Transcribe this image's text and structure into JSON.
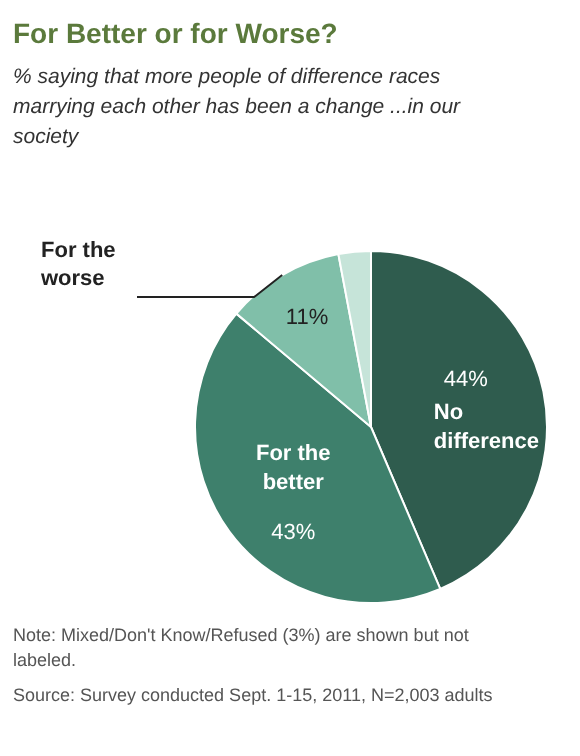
{
  "chart_data": {
    "type": "pie",
    "title": "For Better or for Worse?",
    "subtitle": "% saying that more people of difference races marrying each other has been a change ...in our society",
    "categories": [
      "No difference",
      "For the better",
      "For the worse",
      null
    ],
    "values": [
      44,
      43,
      11,
      3
    ],
    "colors": [
      "#2f5c4e",
      "#3e806c",
      "#80bfa9",
      "#c6e4d9"
    ],
    "value_labels": [
      "44%",
      "43%",
      "11%",
      null
    ],
    "annotations": [
      "Note: Mixed/Don't Know/Refused (3%) are shown but not labeled.",
      "Source: Survey conducted Sept. 1-15, 2011, N=2,003 adults"
    ]
  }
}
